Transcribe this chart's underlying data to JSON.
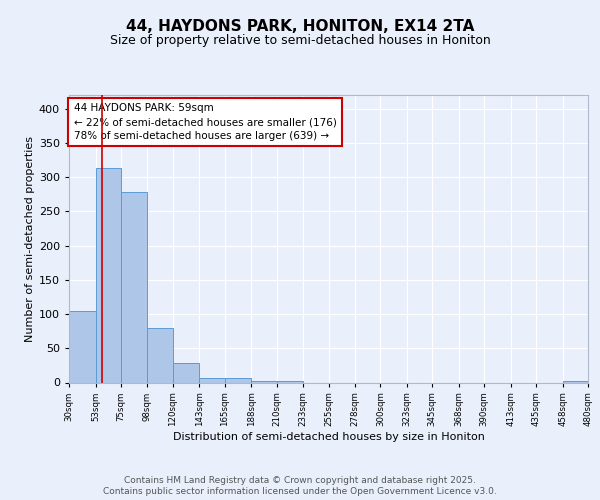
{
  "title_line1": "44, HAYDONS PARK, HONITON, EX14 2TA",
  "title_line2": "Size of property relative to semi-detached houses in Honiton",
  "xlabel": "Distribution of semi-detached houses by size in Honiton",
  "ylabel": "Number of semi-detached properties",
  "bin_edges": [
    30,
    53,
    75,
    98,
    120,
    143,
    165,
    188,
    210,
    233,
    255,
    278,
    300,
    323,
    345,
    368,
    390,
    413,
    435,
    458,
    480
  ],
  "bar_heights": [
    105,
    313,
    278,
    80,
    28,
    6,
    6,
    2,
    2,
    0,
    0,
    0,
    0,
    0,
    0,
    0,
    0,
    0,
    0,
    2
  ],
  "bar_color": "#aec6e8",
  "bar_edge_color": "#5b9bd5",
  "property_size": 59,
  "property_line_color": "#cc0000",
  "annotation_line1": "44 HAYDONS PARK: 59sqm",
  "annotation_line2": "← 22% of semi-detached houses are smaller (176)",
  "annotation_line3": "78% of semi-detached houses are larger (639) →",
  "annotation_box_color": "#ffffff",
  "annotation_box_edge_color": "#cc0000",
  "ylim": [
    0,
    420
  ],
  "yticks": [
    0,
    50,
    100,
    150,
    200,
    250,
    300,
    350,
    400
  ],
  "bg_color": "#eaf0fb",
  "plot_bg_color": "#eaf0fb",
  "footer_line1": "Contains HM Land Registry data © Crown copyright and database right 2025.",
  "footer_line2": "Contains public sector information licensed under the Open Government Licence v3.0.",
  "tick_labels": [
    "30sqm",
    "53sqm",
    "75sqm",
    "98sqm",
    "120sqm",
    "143sqm",
    "165sqm",
    "188sqm",
    "210sqm",
    "233sqm",
    "255sqm",
    "278sqm",
    "300sqm",
    "323sqm",
    "345sqm",
    "368sqm",
    "390sqm",
    "413sqm",
    "435sqm",
    "458sqm",
    "480sqm"
  ]
}
